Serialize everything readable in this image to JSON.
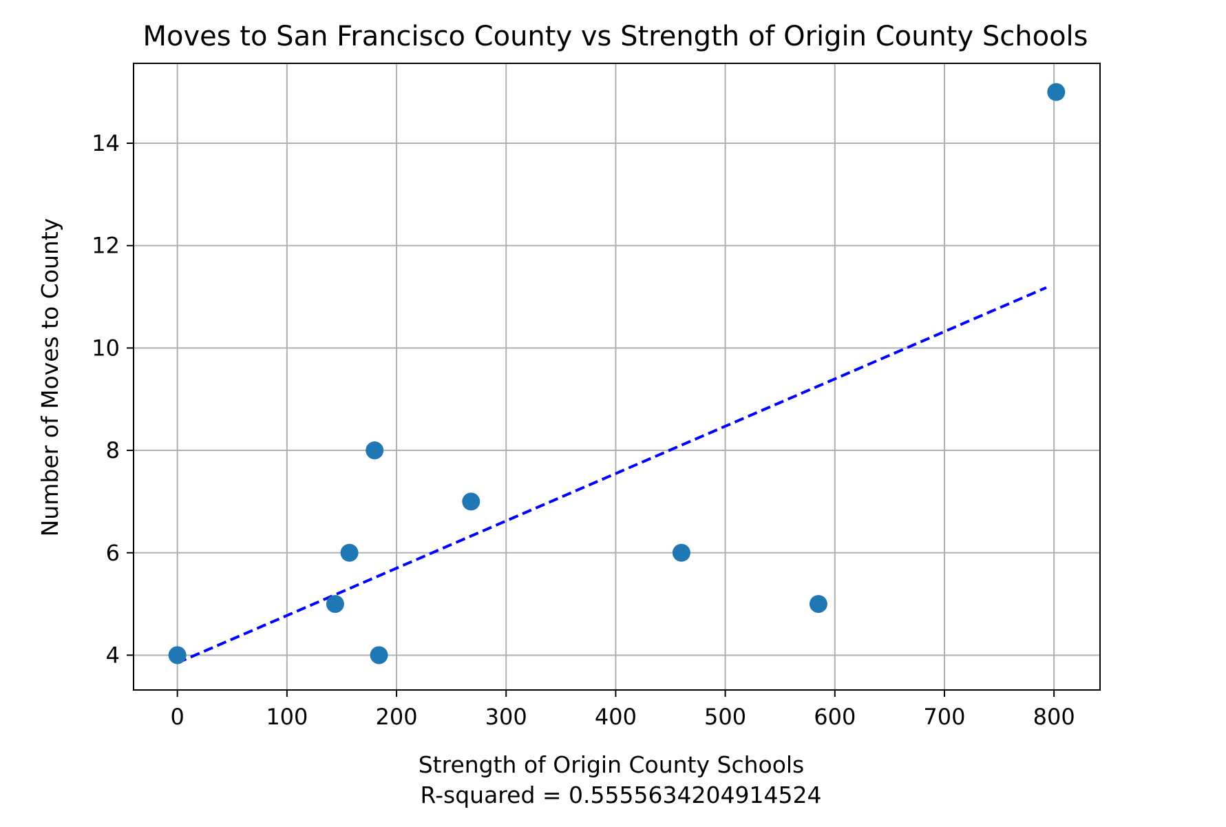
{
  "chart_data": {
    "type": "scatter",
    "title": "Moves to San Francisco County vs Strength of Origin County Schools",
    "xlabel": "Strength of Origin County Schools",
    "xlabel_note": "R-squared = 0.5555634204914524",
    "ylabel": "Number of Moves to County",
    "xlim": [
      -40,
      842
    ],
    "ylim": [
      3.32,
      15.56
    ],
    "x_ticks": [
      0,
      100,
      200,
      300,
      400,
      500,
      600,
      700,
      800
    ],
    "x_tick_labels": [
      "0",
      "100",
      "200",
      "300",
      "400",
      "500",
      "600",
      "700",
      "800"
    ],
    "y_ticks": [
      4,
      6,
      8,
      10,
      12,
      14
    ],
    "y_tick_labels": [
      "4",
      "6",
      "8",
      "10",
      "12",
      "14"
    ],
    "grid": true,
    "series": [
      {
        "kind": "scatter",
        "color": "#1f77b4",
        "points": [
          {
            "x": 0,
            "y": 4
          },
          {
            "x": 144,
            "y": 5
          },
          {
            "x": 157,
            "y": 6
          },
          {
            "x": 180,
            "y": 8
          },
          {
            "x": 184,
            "y": 4
          },
          {
            "x": 268,
            "y": 7
          },
          {
            "x": 460,
            "y": 6
          },
          {
            "x": 585,
            "y": 5
          },
          {
            "x": 802,
            "y": 15
          }
        ]
      },
      {
        "kind": "line",
        "style": "dashed",
        "color": "#0000ff",
        "points": [
          {
            "x": 0,
            "y": 3.85
          },
          {
            "x": 793,
            "y": 11.18
          }
        ]
      }
    ]
  }
}
